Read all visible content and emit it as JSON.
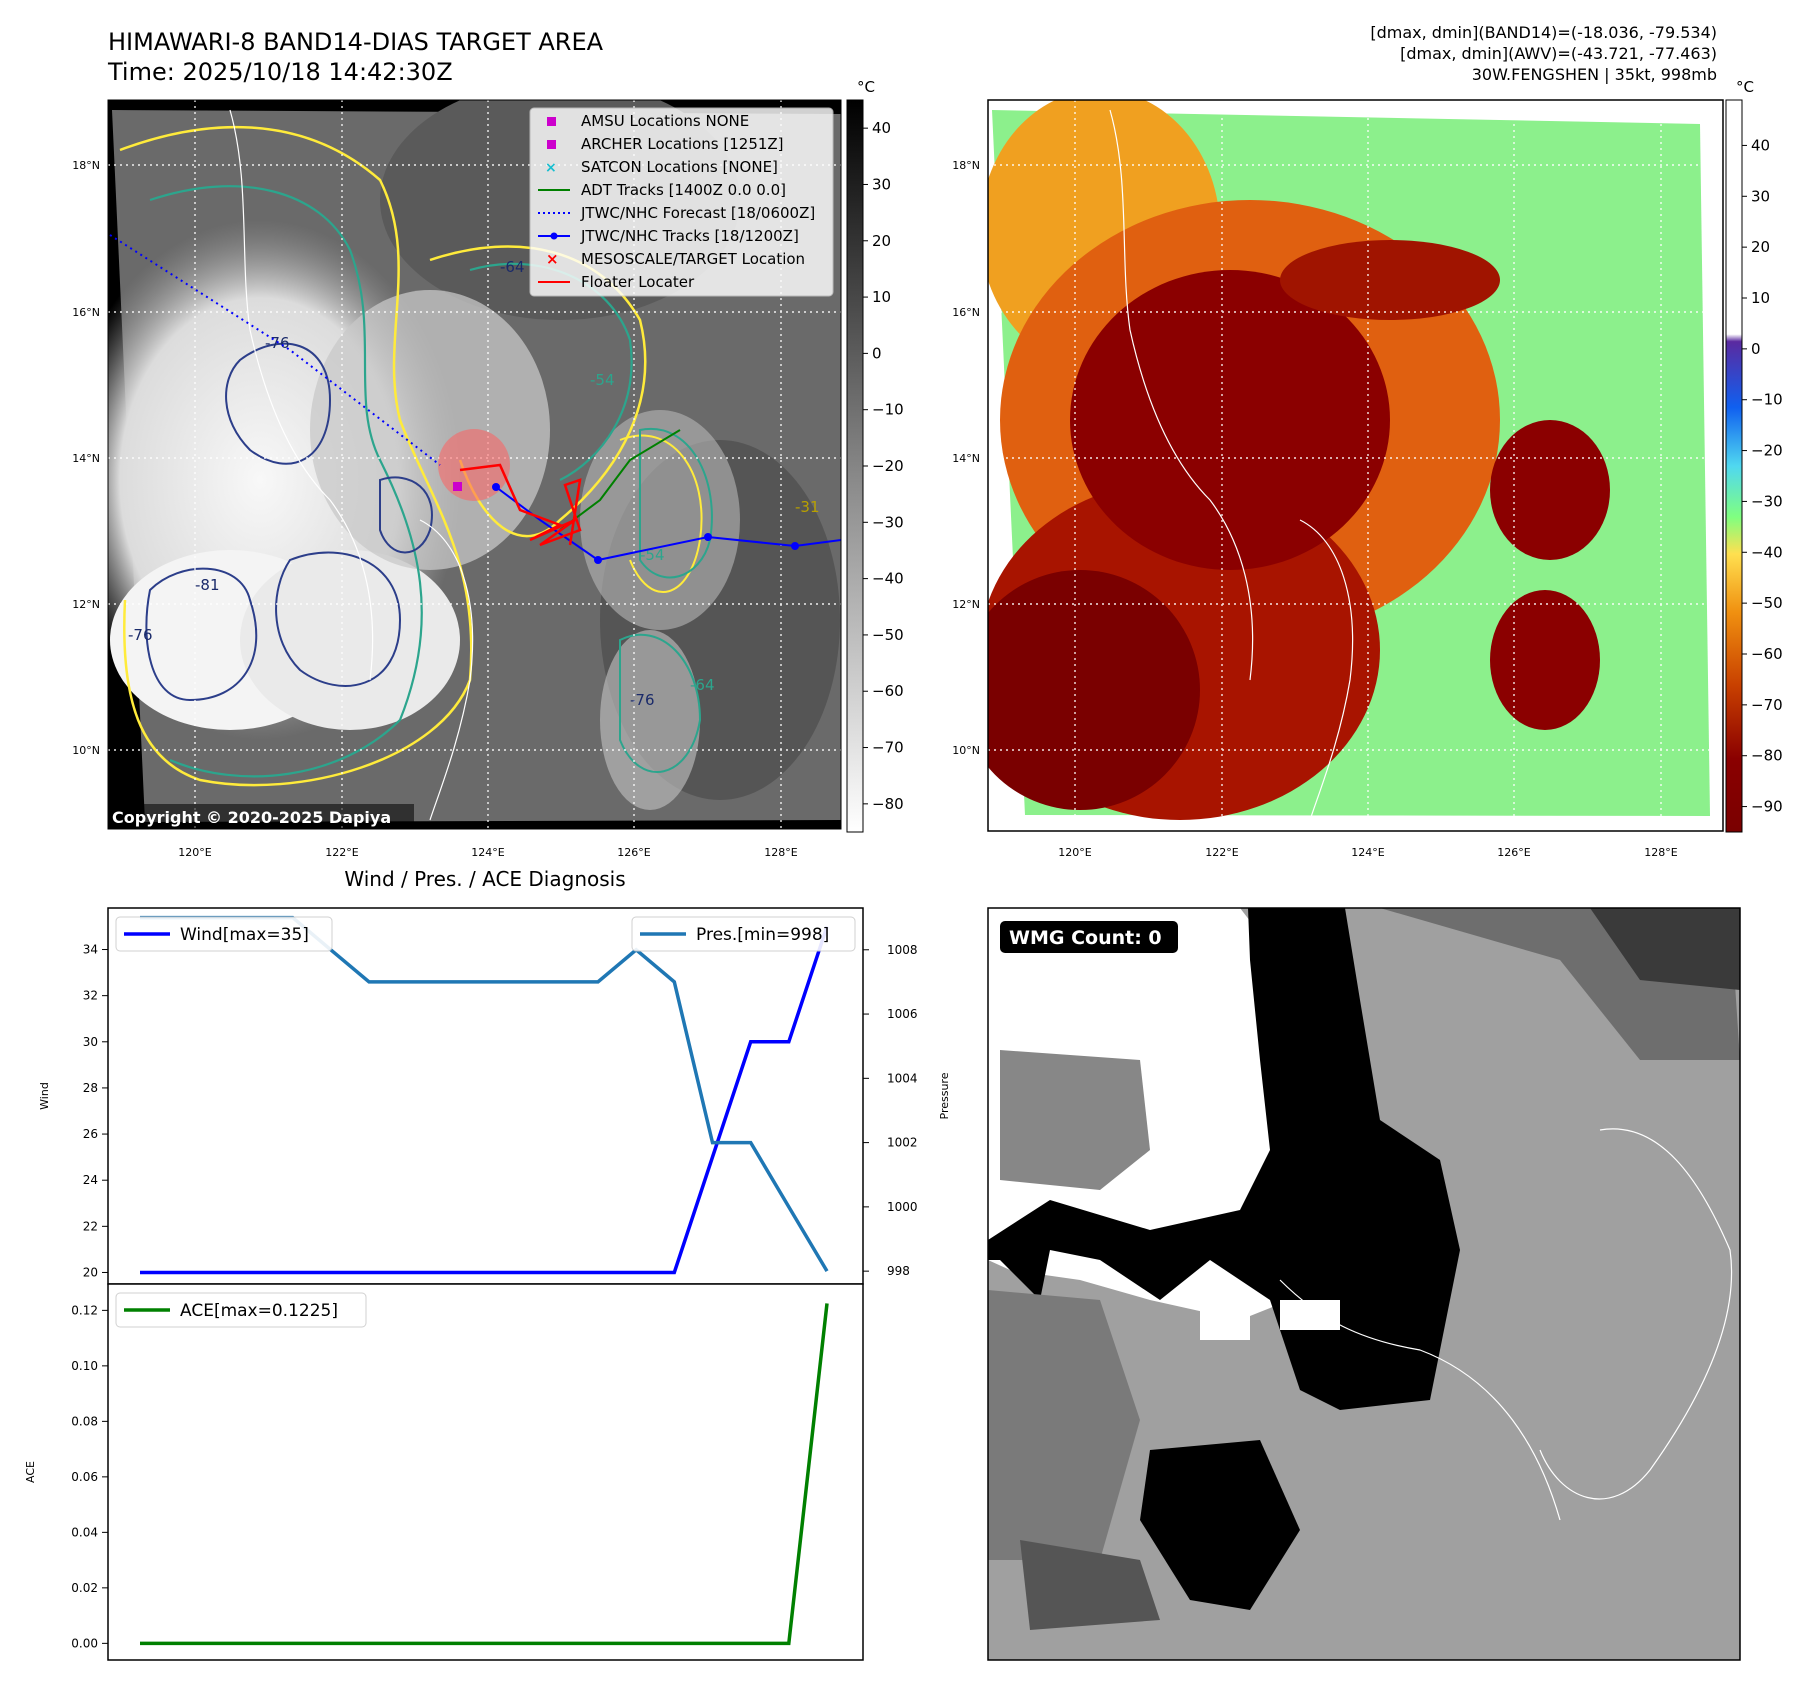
{
  "title": {
    "line1": "HIMAWARI-8 BAND14-DIAS TARGET AREA",
    "line2": "Time: 2025/10/18 14:42:30Z"
  },
  "info": {
    "line1": "[dmax, dmin](BAND14)=(-18.036, -79.534)",
    "line2": "[dmax, dmin](AWV)=(-43.721, -77.463)",
    "line3": "30W.FENGSHEN | 35kt, 998mb"
  },
  "map": {
    "lat_ticks": [
      "18°N",
      "16°N",
      "14°N",
      "12°N",
      "10°N"
    ],
    "lon_ticks": [
      "120°E",
      "122°E",
      "124°E",
      "126°E",
      "128°E"
    ],
    "copyright": "Copyright © 2020-2025 Dapiya"
  },
  "colorbar1": {
    "unit": "°C",
    "ticks": [
      "40",
      "30",
      "20",
      "10",
      "0",
      "−10",
      "−20",
      "−30",
      "−40",
      "−50",
      "−60",
      "−70",
      "−80"
    ]
  },
  "colorbar2": {
    "unit": "°C",
    "ticks": [
      "40",
      "30",
      "20",
      "10",
      "0",
      "−10",
      "−20",
      "−30",
      "−40",
      "−50",
      "−60",
      "−70",
      "−80",
      "−90"
    ]
  },
  "legend": {
    "items": [
      {
        "label": "AMSU Locations NONE",
        "color": "#cc00cc"
      },
      {
        "label": "ARCHER Locations [1251Z]",
        "color": "#cc00cc"
      },
      {
        "label": "SATCON Locations [NONE]",
        "color": "#17becf"
      },
      {
        "label": "ADT Tracks [1400Z 0.0 0.0]",
        "color": "#008000"
      },
      {
        "label": "JTWC/NHC Forecast [18/0600Z]",
        "color": "#0000ff"
      },
      {
        "label": "JTWC/NHC Tracks [18/1200Z]",
        "color": "#0000ff"
      },
      {
        "label": "MESOSCALE/TARGET Location",
        "color": "#ff0000"
      },
      {
        "label": "Floater Locater",
        "color": "#ff0000"
      }
    ]
  },
  "contour_labels": [
    "-64",
    "-76",
    "-54",
    "-31",
    "-81",
    "-76",
    "-64",
    "-54",
    "-76"
  ],
  "wmg": {
    "label": "WMG Count: 0"
  },
  "chart_data": [
    {
      "type": "line",
      "title": "Wind / Pres. / ACE Diagnosis",
      "ylabel": "Wind",
      "y2label": "Pressure",
      "x": [
        0,
        1,
        2,
        3,
        4,
        5,
        6,
        7,
        8,
        9,
        10,
        11,
        12,
        13,
        14,
        15,
        16,
        17,
        18
      ],
      "ylim": [
        19.5,
        35.8
      ],
      "y2lim": [
        997.6,
        1009.3
      ],
      "yticks": [
        20,
        22,
        24,
        26,
        28,
        30,
        32,
        34
      ],
      "y2ticks": [
        998,
        1000,
        1002,
        1004,
        1006,
        1008
      ],
      "series": [
        {
          "name": "Wind[max=35]",
          "axis": "left",
          "color": "#0000ff",
          "values": [
            20,
            20,
            20,
            20,
            20,
            20,
            20,
            20,
            20,
            20,
            20,
            20,
            20,
            20,
            20,
            25,
            30,
            30,
            35
          ]
        },
        {
          "name": "Pres.[min=998]",
          "axis": "right",
          "color": "#1f77b4",
          "values": [
            1009,
            1009,
            1009,
            1009,
            1009,
            1008,
            1007,
            1007,
            1007,
            1007,
            1007,
            1007,
            1007,
            1008,
            1007,
            1002,
            1002,
            1000,
            998
          ]
        }
      ]
    },
    {
      "type": "line",
      "ylabel": "ACE",
      "x": [
        0,
        1,
        2,
        3,
        4,
        5,
        6,
        7,
        8,
        9,
        10,
        11,
        12,
        13,
        14,
        15,
        16,
        17,
        18
      ],
      "ylim": [
        -0.006,
        0.1295
      ],
      "yticks": [
        "0.00",
        "0.02",
        "0.04",
        "0.06",
        "0.08",
        "0.10",
        "0.12"
      ],
      "series": [
        {
          "name": "ACE[max=0.1225]",
          "color": "#008000",
          "values": [
            0,
            0,
            0,
            0,
            0,
            0,
            0,
            0,
            0,
            0,
            0,
            0,
            0,
            0,
            0,
            0,
            0,
            0,
            0.1225
          ]
        }
      ]
    }
  ]
}
